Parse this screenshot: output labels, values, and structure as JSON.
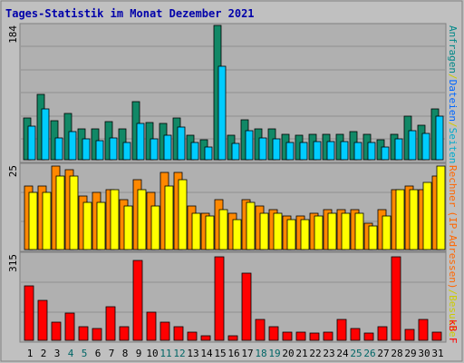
{
  "title": "Tages-Statistik im Monat Dezember 2021",
  "colors": {
    "background": "#c0c0c0",
    "panel": "#b0b0b0",
    "title": "#0000aa",
    "anfragen": "#006666",
    "dateien": "#0066ff",
    "rechner": "#ff6600",
    "kb": "#ff0000",
    "weekend": "#006666",
    "weekday": "#000000"
  },
  "legend": {
    "top_anfragen": "Anfragen",
    "top_sep1": "/",
    "top_dateien": "Dateien",
    "top_sep2": "/",
    "top_seiten": "Seiten",
    "middle_rechner": "Rechner",
    "middle_sep": "/",
    "middle_besuche": "Besuche",
    "middle_ip": "(IP-Adressen)",
    "bottom_kb": "kB F"
  },
  "chart_data": {
    "type": "bar",
    "title": "Tages-Statistik im Monat Dezember 2021",
    "categories": [
      "1",
      "2",
      "3",
      "4",
      "5",
      "6",
      "7",
      "8",
      "9",
      "10",
      "11",
      "12",
      "13",
      "14",
      "15",
      "16",
      "17",
      "18",
      "19",
      "20",
      "21",
      "22",
      "23",
      "24",
      "25",
      "26",
      "27",
      "28",
      "29",
      "30",
      "31"
    ],
    "weekend_days": [
      4,
      5,
      11,
      12,
      18,
      19,
      25,
      26
    ],
    "panels": [
      {
        "ymax_label": "184",
        "ymax": 184,
        "series": [
          {
            "key": "anfragen",
            "color": "#118866",
            "values": [
              57,
              89,
              54,
              63,
              42,
              42,
              52,
              42,
              80,
              51,
              50,
              57,
              33,
              27,
              184,
              33,
              55,
              42,
              42,
              35,
              33,
              35,
              35,
              35,
              38,
              35,
              27,
              35,
              60,
              47,
              70
            ]
          },
          {
            "key": "dateien",
            "color": "#00ccff",
            "values": [
              46,
              70,
              30,
              38,
              28,
              26,
              30,
              24,
              50,
              28,
              34,
              45,
              24,
              17,
              128,
              22,
              40,
              30,
              28,
              24,
              24,
              25,
              25,
              25,
              23,
              24,
              18,
              28,
              40,
              36,
              60
            ]
          },
          {
            "key": "seiten",
            "color": "#0066ff",
            "values": [
              0,
              0,
              0,
              0,
              0,
              0,
              0,
              0,
              0,
              0,
              0,
              0,
              0,
              0,
              0,
              0,
              0,
              0,
              0,
              0,
              0,
              0,
              0,
              0,
              0,
              0,
              0,
              0,
              0,
              0,
              0
            ]
          }
        ]
      },
      {
        "ymax_label": "25",
        "ymax": 25,
        "series": [
          {
            "key": "rechner",
            "color": "#ff8800",
            "values": [
              19,
              19,
              25,
              24,
              16,
              17,
              18,
              15,
              21,
              17,
              23,
              23,
              13,
              11,
              15,
              11,
              15,
              13,
              12,
              10,
              10,
              11,
              12,
              12,
              12,
              8,
              12,
              18,
              19,
              18,
              22
            ]
          },
          {
            "key": "besuche",
            "color": "#ffff00",
            "values": [
              17,
              17,
              22,
              22,
              14,
              14,
              18,
              13,
              18,
              13,
              19,
              21,
              11,
              10,
              12,
              9,
              14,
              11,
              11,
              9,
              9,
              10,
              11,
              11,
              11,
              7,
              10,
              18,
              18,
              20,
              25
            ]
          }
        ]
      },
      {
        "ymax_label": "315",
        "ymax": 315,
        "series": [
          {
            "key": "kb",
            "color": "#ff0000",
            "values": [
              205,
              150,
              68,
              103,
              53,
              45,
              128,
              53,
              300,
              105,
              70,
              53,
              32,
              18,
              315,
              18,
              255,
              78,
              50,
              30,
              30,
              26,
              30,
              80,
              45,
              28,
              50,
              315,
              40,
              78,
              30
            ]
          }
        ]
      }
    ]
  }
}
